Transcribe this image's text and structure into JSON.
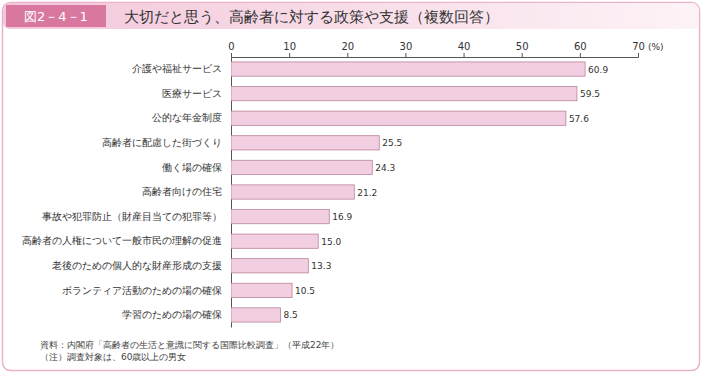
{
  "chart_data": {
    "type": "bar",
    "orientation": "horizontal",
    "figure_label": "図2－4－1",
    "title": "大切だと思う、高齢者に対する政策や支援（複数回答）",
    "xlabel": "(%)",
    "categories": [
      "介護や福祉サービス",
      "医療サービス",
      "公的な年金制度",
      "高齢者に配慮した街づくり",
      "働く場の確保",
      "高齢者向けの住宅",
      "事故や犯罪防止（財産目当ての犯罪等）",
      "高齢者の人権について一般市民の理解の促進",
      "老後のための個人的な財産形成の支援",
      "ボランティア活動のための場の確保",
      "学習のための場の確保"
    ],
    "values": [
      60.9,
      59.5,
      57.6,
      25.5,
      24.3,
      21.2,
      16.9,
      15.0,
      13.3,
      10.5,
      8.5
    ],
    "value_labels": [
      "60.9",
      "59.5",
      "57.6",
      "25.5",
      "24.3",
      "21.2",
      "16.9",
      "15.0",
      "13.3",
      "10.5",
      "8.5"
    ],
    "data_labels": true,
    "color": "#f2cfe0",
    "xlim": [
      0,
      70
    ],
    "xticks": [
      0,
      10,
      20,
      30,
      40,
      50,
      60,
      70
    ],
    "grid": false,
    "notes": [
      "資料：内閣府「高齢者の生活と意識に関する国際比較調査」（平成22年）",
      "（注）調査対象は、60歳以上の男女"
    ]
  }
}
